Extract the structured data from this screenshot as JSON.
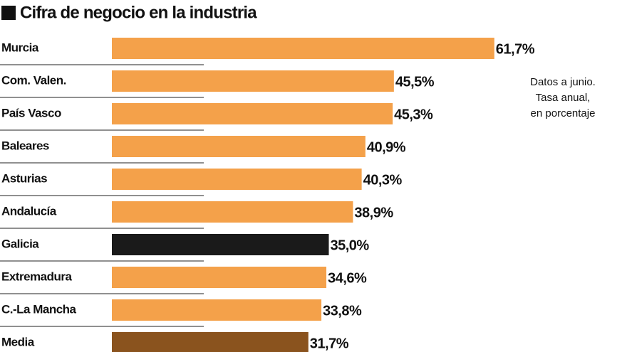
{
  "chart_data": {
    "type": "hbar",
    "title": "Cifra de negocio en la industria",
    "annotation": [
      "Datos a junio.",
      "Tasa anual,",
      "en porcentaje"
    ],
    "categories": [
      "Murcia",
      "Com. Valen.",
      "País Vasco",
      "Baleares",
      "Asturias",
      "Andalucía",
      "Galicia",
      "Extremadura",
      "C.-La Mancha",
      "Media"
    ],
    "values": [
      61.7,
      45.5,
      45.3,
      40.9,
      40.3,
      38.9,
      35.0,
      34.6,
      33.8,
      31.7
    ],
    "value_labels": [
      "61,7%",
      "45,5%",
      "45,3%",
      "40,9%",
      "40,3%",
      "38,9%",
      "35,0%",
      "34,6%",
      "33,8%",
      "31,7%"
    ],
    "colors": [
      "#f4a14a",
      "#f4a14a",
      "#f4a14a",
      "#f4a14a",
      "#f4a14a",
      "#f4a14a",
      "#1a1a1a",
      "#f4a14a",
      "#f4a14a",
      "#8a531e"
    ],
    "xlim": [
      0,
      80
    ]
  }
}
